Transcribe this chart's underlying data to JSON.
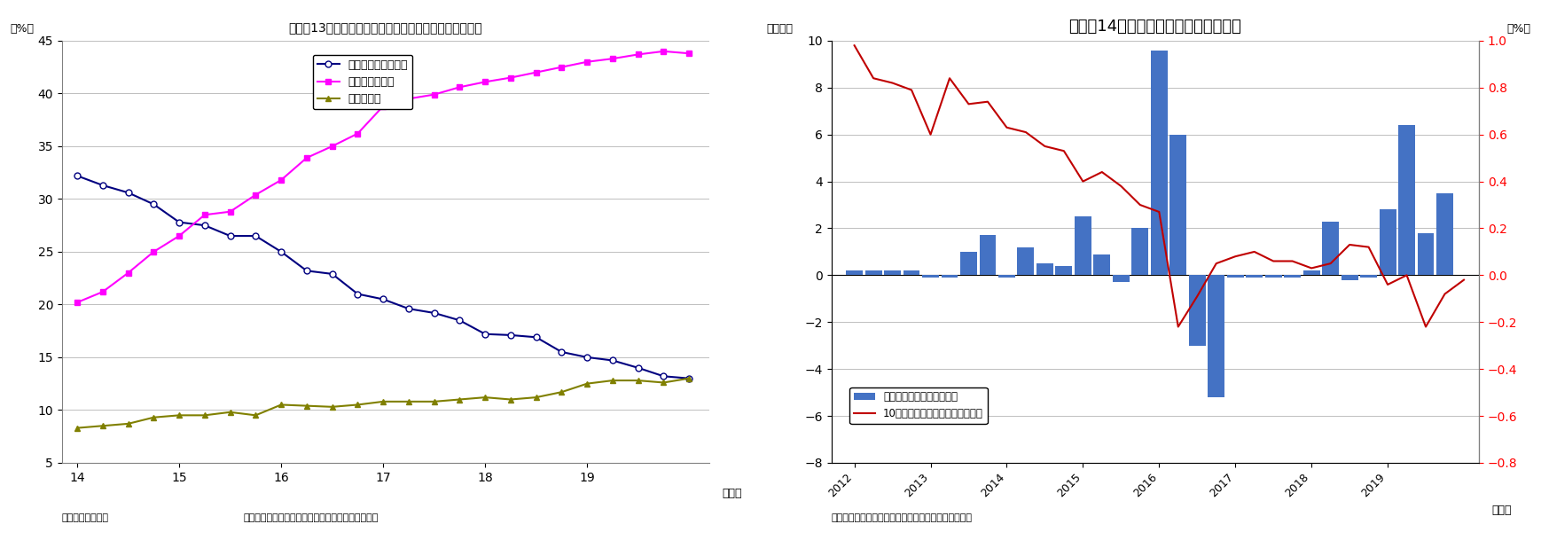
{
  "chart1": {
    "title": "（図表13）預金取扱機関と日銀、海外の国債保有シェア",
    "ylabel_left": "（%）",
    "xlabel": "（年）",
    "source": "（資料）日本銀行",
    "note": "（注）国債は、国庫短期証券と国債・財投債の合計",
    "ylim": [
      5,
      45
    ],
    "yticks": [
      5,
      10,
      15,
      20,
      25,
      30,
      35,
      40,
      45
    ],
    "series": {
      "deposit": {
        "label": "預金取扱機関シェア",
        "color": "#000080",
        "marker": "o",
        "markersize": 5,
        "x": [
          14.0,
          14.25,
          14.5,
          14.75,
          15.0,
          15.25,
          15.5,
          15.75,
          16.0,
          16.25,
          16.5,
          16.75,
          17.0,
          17.25,
          17.5,
          17.75,
          18.0,
          18.25,
          18.5,
          18.75,
          19.0,
          19.25,
          19.5,
          19.75,
          20.0
        ],
        "y": [
          32.2,
          31.3,
          30.6,
          29.5,
          27.8,
          27.5,
          26.5,
          26.5,
          25.0,
          23.2,
          22.9,
          21.0,
          20.5,
          19.6,
          19.2,
          18.5,
          17.2,
          17.1,
          16.9,
          15.5,
          15.0,
          14.7,
          14.0,
          13.2,
          13.0
        ]
      },
      "boj": {
        "label": "日本銀行シェア",
        "color": "#FF00FF",
        "marker": "s",
        "markersize": 5,
        "x": [
          14.0,
          14.25,
          14.5,
          14.75,
          15.0,
          15.25,
          15.5,
          15.75,
          16.0,
          16.25,
          16.5,
          16.75,
          17.0,
          17.25,
          17.5,
          17.75,
          18.0,
          18.25,
          18.5,
          18.75,
          19.0,
          19.25,
          19.5,
          19.75,
          20.0
        ],
        "y": [
          20.2,
          21.2,
          23.0,
          25.0,
          26.5,
          28.5,
          28.8,
          30.4,
          31.8,
          33.9,
          35.0,
          36.2,
          38.8,
          39.5,
          39.9,
          40.6,
          41.1,
          41.5,
          42.0,
          42.5,
          43.0,
          43.3,
          43.7,
          44.0,
          43.8
        ]
      },
      "overseas": {
        "label": "海外シェア",
        "color": "#808000",
        "marker": "^",
        "markersize": 5,
        "x": [
          14.0,
          14.25,
          14.5,
          14.75,
          15.0,
          15.25,
          15.5,
          15.75,
          16.0,
          16.25,
          16.5,
          16.75,
          17.0,
          17.25,
          17.5,
          17.75,
          18.0,
          18.25,
          18.5,
          18.75,
          19.0,
          19.25,
          19.5,
          19.75,
          20.0
        ],
        "y": [
          8.3,
          8.5,
          8.7,
          9.3,
          9.5,
          9.5,
          9.8,
          9.5,
          10.5,
          10.4,
          10.3,
          10.5,
          10.8,
          10.8,
          10.8,
          11.0,
          11.2,
          11.0,
          11.2,
          11.7,
          12.5,
          12.8,
          12.8,
          12.6,
          13.0
        ]
      }
    },
    "xticks": [
      14,
      15,
      16,
      17,
      18,
      19
    ]
  },
  "chart2": {
    "title": "（図表14）日銀保有国債の時価変動額",
    "ylabel_left": "（兆円）",
    "ylabel_right": "（%）",
    "xlabel": "（年）",
    "source": "（資料）日本銀行データよりニッセイ基礎研究所作成",
    "ylim_left": [
      -8,
      10
    ],
    "ylim_right": [
      -0.8,
      1.0
    ],
    "yticks_left": [
      -8,
      -6,
      -4,
      -2,
      0,
      2,
      4,
      6,
      8,
      10
    ],
    "yticks_right": [
      -0.8,
      -0.6,
      -0.4,
      -0.2,
      0.0,
      0.2,
      0.4,
      0.6,
      0.8,
      1.0
    ],
    "bar_color": "#4472C4",
    "line_color": "#C00000",
    "bar_label": "日銀保有国債の時価変動額",
    "line_label": "10年国債利回り（月末値・右軸）",
    "bar_x": [
      2012.0,
      2012.25,
      2012.5,
      2012.75,
      2013.0,
      2013.25,
      2013.5,
      2013.75,
      2014.0,
      2014.25,
      2014.5,
      2014.75,
      2015.0,
      2015.25,
      2015.5,
      2015.75,
      2016.0,
      2016.25,
      2016.5,
      2016.75,
      2017.0,
      2017.25,
      2017.5,
      2017.75,
      2018.0,
      2018.25,
      2018.5,
      2018.75,
      2019.0,
      2019.25,
      2019.5,
      2019.75
    ],
    "bar_y": [
      0.2,
      0.2,
      0.2,
      0.2,
      -0.1,
      -0.1,
      1.0,
      1.7,
      -0.1,
      1.2,
      0.5,
      0.4,
      2.5,
      0.9,
      -0.3,
      2.0,
      9.6,
      6.0,
      -3.0,
      -5.2,
      -0.1,
      -0.1,
      -0.1,
      -0.1,
      0.2,
      2.3,
      -0.2,
      -0.1,
      2.8,
      6.4,
      1.8,
      3.5
    ],
    "line_x": [
      2012.0,
      2012.25,
      2012.5,
      2012.75,
      2013.0,
      2013.25,
      2013.5,
      2013.75,
      2014.0,
      2014.25,
      2014.5,
      2014.75,
      2015.0,
      2015.25,
      2015.5,
      2015.75,
      2016.0,
      2016.25,
      2016.5,
      2016.75,
      2017.0,
      2017.25,
      2017.5,
      2017.75,
      2018.0,
      2018.25,
      2018.5,
      2018.75,
      2019.0,
      2019.25,
      2019.5,
      2019.75,
      2020.0
    ],
    "line_y": [
      0.98,
      0.84,
      0.82,
      0.79,
      0.6,
      0.84,
      0.73,
      0.74,
      0.63,
      0.61,
      0.55,
      0.53,
      0.4,
      0.44,
      0.38,
      0.3,
      0.27,
      -0.22,
      -0.09,
      0.05,
      0.08,
      0.1,
      0.06,
      0.06,
      0.03,
      0.05,
      0.13,
      0.12,
      -0.04,
      0.0,
      -0.22,
      -0.08,
      -0.02
    ],
    "xticks": [
      2012,
      2013,
      2014,
      2015,
      2016,
      2017,
      2018,
      2019
    ]
  }
}
